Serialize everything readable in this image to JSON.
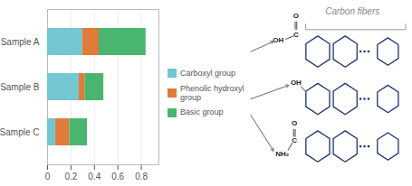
{
  "chart_data": {
    "type": "bar",
    "orientation": "horizontal",
    "stacked": true,
    "categories": [
      "Sample A",
      "Sample B",
      "Sample C"
    ],
    "series": [
      {
        "name": "Carboxyl group",
        "color": "#72c7d1",
        "values": [
          0.3,
          0.27,
          0.07
        ]
      },
      {
        "name": "Phenolic hydroxyl\ngroup",
        "color": "#e07b39",
        "values": [
          0.14,
          0.05,
          0.12
        ]
      },
      {
        "name": "Basic group",
        "color": "#4ab56e",
        "values": [
          0.4,
          0.16,
          0.15
        ]
      }
    ],
    "xlim": [
      0,
      0.95
    ],
    "xticks": [
      0,
      0.2,
      0.4,
      0.6,
      0.8
    ],
    "grid": true,
    "legend": "right",
    "annotations": [
      "Carbon fibers",
      "O",
      "C",
      "OH",
      "OH",
      "O",
      "C",
      "NH₂"
    ]
  }
}
